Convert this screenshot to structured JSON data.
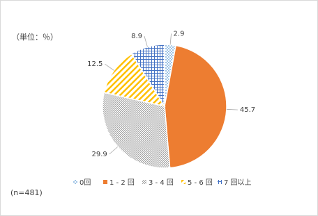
{
  "unit_note": "（単位：％）",
  "sample_note": "(n=481)",
  "chart_data": {
    "type": "pie",
    "categories": [
      "0回",
      "1 - 2 回",
      "3 - 4 回",
      "5 - 6 回",
      "7 回以上"
    ],
    "values": [
      2.9,
      45.7,
      29.9,
      12.5,
      8.9
    ],
    "colors": [
      "#5b9bd5",
      "#ed7d31",
      "#a5a5a5",
      "#ffc000",
      "#4472c4"
    ],
    "start_angle": 0,
    "direction": "clockwise",
    "legend": "bottom"
  }
}
